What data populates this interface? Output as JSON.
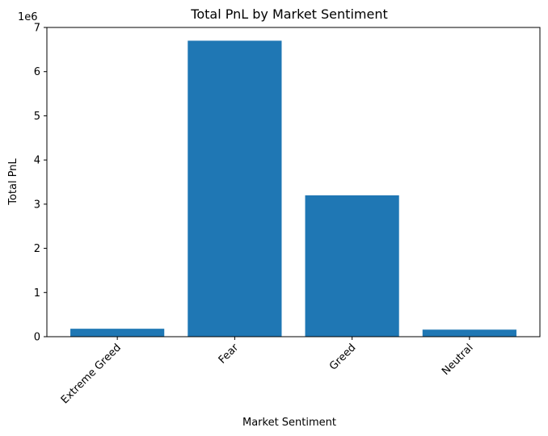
{
  "chart_data": {
    "type": "bar",
    "title": "Total PnL by Market Sentiment",
    "xlabel": "Market Sentiment",
    "ylabel": "Total PnL",
    "y_multiplier_label": "1e6",
    "categories": [
      "Extreme Greed",
      "Fear",
      "Greed",
      "Neutral"
    ],
    "values": [
      0.18,
      6.7,
      3.2,
      0.16
    ],
    "value_scale": 1000000,
    "ylim": [
      0,
      7
    ],
    "yticks": [
      "0",
      "1",
      "2",
      "3",
      "4",
      "5",
      "6",
      "7"
    ],
    "bar_color": "#1f77b4",
    "grid": false,
    "legend": false,
    "x_tick_rotation_deg": 45
  }
}
